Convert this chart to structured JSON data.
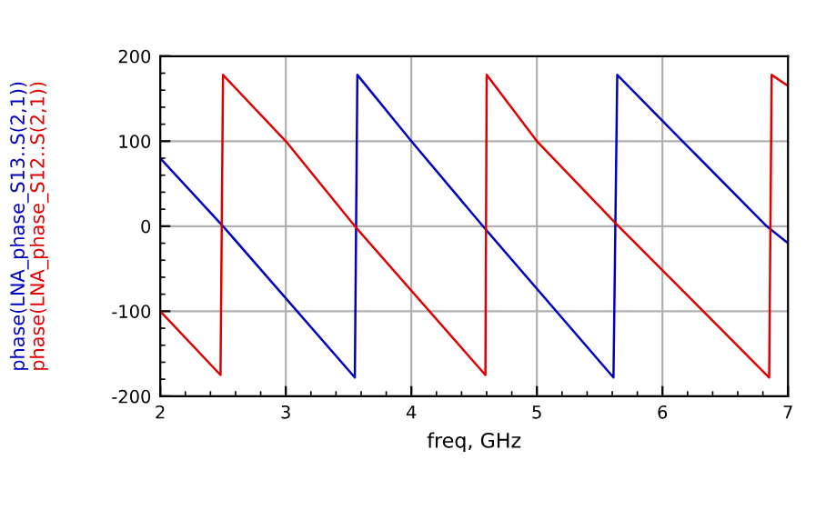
{
  "chart_data": {
    "type": "line",
    "xlabel": "freq, GHz",
    "legend": "left",
    "grid": true,
    "marker": "none",
    "line_style": "solid",
    "xlim": [
      2,
      7
    ],
    "xticks": [
      2,
      3,
      4,
      5,
      6,
      7
    ],
    "ylim": [
      -200,
      200
    ],
    "yticks": [
      -200,
      -100,
      0,
      100,
      200
    ],
    "series": [
      {
        "name": "phase(LNA_phase_S13..S(2,1))",
        "color": "#0000c0",
        "x": [
          2,
          2.5,
          3.55,
          3.57,
          4.0,
          4.57,
          5.61,
          5.64,
          6.16,
          6.83,
          7
        ],
        "values": [
          80,
          0,
          -178,
          178,
          100,
          0,
          -178,
          178,
          100,
          0,
          -20
        ]
      },
      {
        "name": "phase(LNA_phase_S12..S(2,1))",
        "color": "#e00000",
        "x": [
          2,
          2.48,
          2.5,
          3.0,
          3.55,
          4.59,
          4.6,
          5.0,
          5.65,
          6.85,
          6.87,
          7
        ],
        "values": [
          -100,
          -175,
          178,
          100,
          0,
          -175,
          178,
          100,
          0,
          -178,
          178,
          165
        ]
      }
    ]
  }
}
